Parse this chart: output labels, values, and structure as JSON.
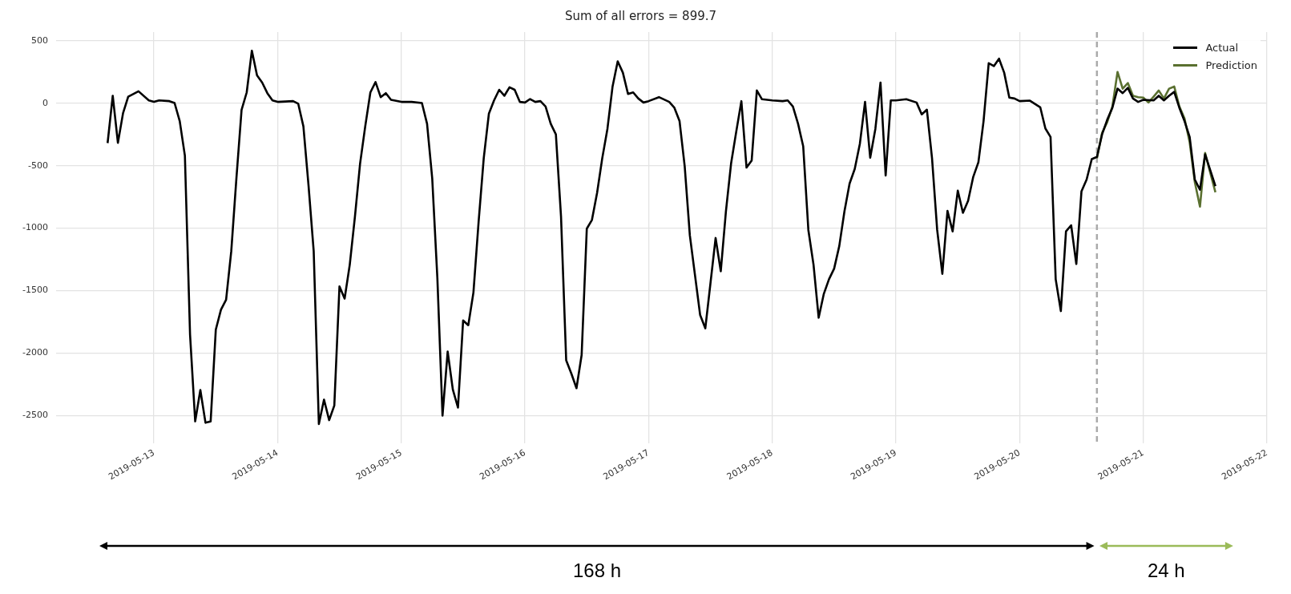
{
  "chart_data": {
    "type": "line",
    "title": "Sum of all errors = 899.7",
    "series": [
      {
        "name": "Actual",
        "color": "#000000",
        "x": [
          "2019-05-12T15:00",
          "2019-05-12T16:00",
          "2019-05-12T17:00",
          "2019-05-12T18:00",
          "2019-05-12T19:00",
          "2019-05-12T21:00",
          "2019-05-12T23:00",
          "2019-05-13T00:00",
          "2019-05-13T01:00",
          "2019-05-13T03:00",
          "2019-05-13T04:00",
          "2019-05-13T05:00",
          "2019-05-13T06:00",
          "2019-05-13T07:00",
          "2019-05-13T08:00",
          "2019-05-13T09:00",
          "2019-05-13T10:00",
          "2019-05-13T11:00",
          "2019-05-13T12:00",
          "2019-05-13T13:00",
          "2019-05-13T14:00",
          "2019-05-13T15:00",
          "2019-05-13T16:00",
          "2019-05-13T17:00",
          "2019-05-13T18:00",
          "2019-05-13T19:00",
          "2019-05-13T20:00",
          "2019-05-13T21:00",
          "2019-05-13T22:00",
          "2019-05-13T23:00",
          "2019-05-14T00:00",
          "2019-05-14T03:00",
          "2019-05-14T04:00",
          "2019-05-14T05:00",
          "2019-05-14T06:00",
          "2019-05-14T07:00",
          "2019-05-14T08:00",
          "2019-05-14T09:00",
          "2019-05-14T10:00",
          "2019-05-14T11:00",
          "2019-05-14T12:00",
          "2019-05-14T13:00",
          "2019-05-14T14:00",
          "2019-05-14T15:00",
          "2019-05-14T16:00",
          "2019-05-14T17:00",
          "2019-05-14T18:00",
          "2019-05-14T19:00",
          "2019-05-14T20:00",
          "2019-05-14T21:00",
          "2019-05-14T22:00",
          "2019-05-15T00:00",
          "2019-05-15T02:00",
          "2019-05-15T04:00",
          "2019-05-15T05:00",
          "2019-05-15T06:00",
          "2019-05-15T07:00",
          "2019-05-15T08:00",
          "2019-05-15T09:00",
          "2019-05-15T10:00",
          "2019-05-15T11:00",
          "2019-05-15T12:00",
          "2019-05-15T13:00",
          "2019-05-15T14:00",
          "2019-05-15T15:00",
          "2019-05-15T16:00",
          "2019-05-15T17:00",
          "2019-05-15T18:00",
          "2019-05-15T19:00",
          "2019-05-15T20:00",
          "2019-05-15T21:00",
          "2019-05-15T22:00",
          "2019-05-15T23:00",
          "2019-05-16T00:00",
          "2019-05-16T01:00",
          "2019-05-16T02:00",
          "2019-05-16T03:00",
          "2019-05-16T04:00",
          "2019-05-16T05:00",
          "2019-05-16T06:00",
          "2019-05-16T07:00",
          "2019-05-16T08:00",
          "2019-05-16T09:00",
          "2019-05-16T10:00",
          "2019-05-16T11:00",
          "2019-05-16T12:00",
          "2019-05-16T13:00",
          "2019-05-16T14:00",
          "2019-05-16T15:00",
          "2019-05-16T16:00",
          "2019-05-16T17:00",
          "2019-05-16T18:00",
          "2019-05-16T19:00",
          "2019-05-16T20:00",
          "2019-05-16T21:00",
          "2019-05-16T22:00",
          "2019-05-16T23:00",
          "2019-05-17T00:00",
          "2019-05-17T02:00",
          "2019-05-17T04:00",
          "2019-05-17T05:00",
          "2019-05-17T06:00",
          "2019-05-17T07:00",
          "2019-05-17T08:00",
          "2019-05-17T09:00",
          "2019-05-17T10:00",
          "2019-05-17T11:00",
          "2019-05-17T12:00",
          "2019-05-17T13:00",
          "2019-05-17T14:00",
          "2019-05-17T15:00",
          "2019-05-17T16:00",
          "2019-05-17T17:00",
          "2019-05-17T18:00",
          "2019-05-17T19:00",
          "2019-05-17T20:00",
          "2019-05-17T21:00",
          "2019-05-17T22:00",
          "2019-05-18T00:00",
          "2019-05-18T02:00",
          "2019-05-18T03:00",
          "2019-05-18T04:00",
          "2019-05-18T05:00",
          "2019-05-18T06:00",
          "2019-05-18T07:00",
          "2019-05-18T08:00",
          "2019-05-18T09:00",
          "2019-05-18T10:00",
          "2019-05-18T11:00",
          "2019-05-18T12:00",
          "2019-05-18T13:00",
          "2019-05-18T14:00",
          "2019-05-18T15:00",
          "2019-05-18T16:00",
          "2019-05-18T17:00",
          "2019-05-18T18:00",
          "2019-05-18T19:00",
          "2019-05-18T20:00",
          "2019-05-18T21:00",
          "2019-05-18T22:00",
          "2019-05-18T23:00",
          "2019-05-19T00:00",
          "2019-05-19T02:00",
          "2019-05-19T04:00",
          "2019-05-19T05:00",
          "2019-05-19T06:00",
          "2019-05-19T07:00",
          "2019-05-19T08:00",
          "2019-05-19T09:00",
          "2019-05-19T10:00",
          "2019-05-19T11:00",
          "2019-05-19T12:00",
          "2019-05-19T13:00",
          "2019-05-19T14:00",
          "2019-05-19T15:00",
          "2019-05-19T16:00",
          "2019-05-19T17:00",
          "2019-05-19T18:00",
          "2019-05-19T19:00",
          "2019-05-19T20:00",
          "2019-05-19T21:00",
          "2019-05-19T22:00",
          "2019-05-19T23:00",
          "2019-05-20T00:00",
          "2019-05-20T02:00",
          "2019-05-20T04:00",
          "2019-05-20T05:00",
          "2019-05-20T06:00",
          "2019-05-20T07:00",
          "2019-05-20T08:00",
          "2019-05-20T09:00",
          "2019-05-20T10:00",
          "2019-05-20T11:00",
          "2019-05-20T12:00",
          "2019-05-20T13:00",
          "2019-05-20T14:00",
          "2019-05-20T15:00",
          "2019-05-20T16:00",
          "2019-05-20T17:00",
          "2019-05-20T18:00",
          "2019-05-20T19:00",
          "2019-05-20T20:00",
          "2019-05-20T21:00",
          "2019-05-20T22:00",
          "2019-05-20T23:00",
          "2019-05-21T00:00",
          "2019-05-21T02:00",
          "2019-05-21T03:00",
          "2019-05-21T04:00",
          "2019-05-21T05:00",
          "2019-05-21T06:00",
          "2019-05-21T07:00",
          "2019-05-21T08:00",
          "2019-05-21T09:00",
          "2019-05-21T10:00",
          "2019-05-21T11:00",
          "2019-05-21T12:00",
          "2019-05-21T13:00",
          "2019-05-21T14:00"
        ],
        "values": [
          -319,
          60,
          -317,
          -79,
          53,
          96,
          23,
          11,
          23,
          17,
          2,
          -143,
          -419,
          -1850,
          -2547,
          -2296,
          -2558,
          -2547,
          -1813,
          -1653,
          -1573,
          -1185,
          -600,
          -53,
          87,
          421,
          223,
          166,
          81,
          23,
          11,
          17,
          -4,
          -185,
          -660,
          -1185,
          -2568,
          -2373,
          -2537,
          -2420,
          -1466,
          -1564,
          -1292,
          -909,
          -483,
          -185,
          87,
          170,
          49,
          81,
          28,
          11,
          11,
          2,
          -164,
          -600,
          -1400,
          -2500,
          -1988,
          -2292,
          -2437,
          -1739,
          -1777,
          -1515,
          -951,
          -440,
          -83,
          23,
          108,
          60,
          128,
          108,
          11,
          6,
          34,
          11,
          17,
          -26,
          -164,
          -249,
          -909,
          -2058,
          -2164,
          -2281,
          -2015,
          -1004,
          -934,
          -717,
          -440,
          -206,
          134,
          336,
          245,
          74,
          87,
          38,
          6,
          17,
          49,
          11,
          -36,
          -143,
          -504,
          -1058,
          -1377,
          -1696,
          -1802,
          -1441,
          -1079,
          -1345,
          -866,
          -483,
          -228,
          17,
          -515,
          -458,
          102,
          32,
          23,
          17,
          23,
          -26,
          -164,
          -345,
          -1015,
          -1292,
          -1717,
          -1526,
          -1409,
          -1324,
          -1143,
          -866,
          -643,
          -526,
          -323,
          11,
          -436,
          -206,
          166,
          -579,
          23,
          23,
          32,
          6,
          -89,
          -51,
          -440,
          -1015,
          -1366,
          -862,
          -1026,
          -700,
          -877,
          -781,
          -589,
          -472,
          -143,
          321,
          298,
          357,
          245,
          45,
          38,
          17,
          21,
          -32,
          -202,
          -270,
          -1409,
          -1664,
          -1026,
          -977,
          -1287,
          -706,
          -611,
          -447,
          -430,
          -249,
          -132,
          -36,
          117,
          81,
          123,
          38,
          11,
          28,
          23,
          60,
          23,
          60,
          91,
          -36,
          -143,
          -270,
          -611,
          -692,
          -409,
          -536,
          -664
        ]
      },
      {
        "name": "Prediction",
        "color": "#5a7030",
        "x": [
          "2019-05-20T15:00",
          "2019-05-20T16:00",
          "2019-05-20T17:00",
          "2019-05-20T18:00",
          "2019-05-20T19:00",
          "2019-05-20T20:00",
          "2019-05-20T21:00",
          "2019-05-20T22:00",
          "2019-05-20T23:00",
          "2019-05-21T00:00",
          "2019-05-21T01:00",
          "2019-05-21T02:00",
          "2019-05-21T03:00",
          "2019-05-21T04:00",
          "2019-05-21T05:00",
          "2019-05-21T06:00",
          "2019-05-21T07:00",
          "2019-05-21T08:00",
          "2019-05-21T09:00",
          "2019-05-21T10:00",
          "2019-05-21T11:00",
          "2019-05-21T12:00",
          "2019-05-21T13:00",
          "2019-05-21T14:00"
        ],
        "values": [
          -440,
          -238,
          -151,
          -26,
          251,
          117,
          162,
          60,
          49,
          45,
          6,
          53,
          102,
          38,
          117,
          134,
          -26,
          -121,
          -313,
          -632,
          -828,
          -398,
          -558,
          -713
        ]
      }
    ],
    "xlim": [
      "2019-05-12T05:00",
      "2019-05-22T00:00"
    ],
    "xticks": [
      "2019-05-13",
      "2019-05-14",
      "2019-05-15",
      "2019-05-16",
      "2019-05-17",
      "2019-05-18",
      "2019-05-19",
      "2019-05-20",
      "2019-05-21",
      "2019-05-22"
    ],
    "ylim": [
      -2720,
      570
    ],
    "yticks": [
      -2500,
      -2000,
      -1500,
      -1000,
      -500,
      0,
      500
    ],
    "ref_lines": [
      {
        "axis": "x",
        "value": "2019-05-20T15:00",
        "color": "#aaaaaa",
        "line_style": "dashed"
      }
    ],
    "annotations": [
      "168 h",
      "24 h"
    ],
    "grid": true,
    "legend": "top right"
  }
}
